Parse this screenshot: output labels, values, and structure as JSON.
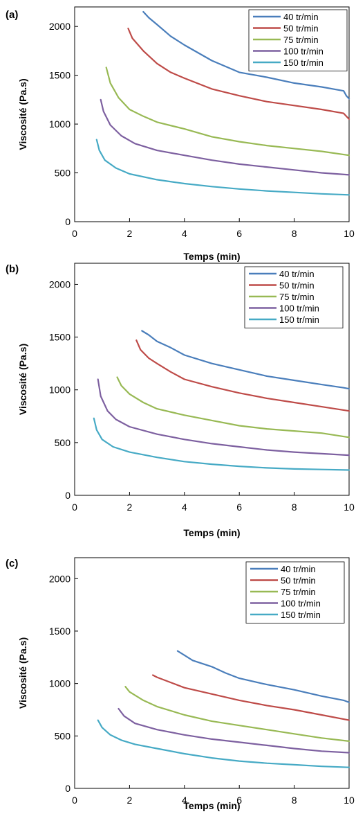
{
  "chart_data": [
    {
      "panel_label": "(a)",
      "type": "line",
      "xlabel": "Temps (min)",
      "ylabel": "Viscosité (Pa.s)",
      "xlim": [
        0,
        10
      ],
      "ylim": [
        0,
        2200
      ],
      "xticks": [
        0,
        2,
        4,
        6,
        8,
        10
      ],
      "yticks": [
        0,
        500,
        1000,
        1500,
        2000
      ],
      "grid": false,
      "legend_position": "top-right",
      "series": [
        {
          "name": "40 tr/min",
          "color": "#4a7ebb",
          "x": [
            2.5,
            2.7,
            3.0,
            3.5,
            4.0,
            5.0,
            6.0,
            7.0,
            8.0,
            9.0,
            9.8,
            9.9,
            10.0
          ],
          "y": [
            2150,
            2090,
            2020,
            1900,
            1810,
            1650,
            1530,
            1480,
            1420,
            1380,
            1340,
            1290,
            1260
          ]
        },
        {
          "name": "50 tr/min",
          "color": "#be4b48",
          "x": [
            1.95,
            2.1,
            2.5,
            3.0,
            3.5,
            4.0,
            5.0,
            6.0,
            7.0,
            8.0,
            9.0,
            9.8,
            10.0
          ],
          "y": [
            1980,
            1880,
            1750,
            1620,
            1530,
            1470,
            1360,
            1290,
            1230,
            1190,
            1150,
            1110,
            1050
          ]
        },
        {
          "name": "75 tr/min",
          "color": "#98b954",
          "x": [
            1.15,
            1.3,
            1.6,
            2.0,
            2.5,
            3.0,
            4.0,
            5.0,
            6.0,
            7.0,
            8.0,
            9.0,
            10.0
          ],
          "y": [
            1580,
            1420,
            1270,
            1150,
            1080,
            1020,
            950,
            870,
            820,
            780,
            750,
            720,
            680
          ]
        },
        {
          "name": "100 tr/min",
          "color": "#7d60a0",
          "x": [
            0.95,
            1.05,
            1.3,
            1.7,
            2.2,
            3.0,
            4.0,
            5.0,
            6.0,
            7.0,
            8.0,
            9.0,
            10.0
          ],
          "y": [
            1250,
            1130,
            990,
            880,
            800,
            730,
            680,
            630,
            590,
            560,
            530,
            500,
            480
          ]
        },
        {
          "name": "150 tr/min",
          "color": "#46aac5",
          "x": [
            0.8,
            0.9,
            1.1,
            1.5,
            2.0,
            3.0,
            4.0,
            5.0,
            6.0,
            7.0,
            8.0,
            9.0,
            10.0
          ],
          "y": [
            840,
            730,
            630,
            550,
            490,
            430,
            390,
            360,
            335,
            315,
            300,
            285,
            275
          ]
        }
      ]
    },
    {
      "panel_label": "(b)",
      "type": "line",
      "xlabel": "Temps (min)",
      "ylabel": "Viscosité (Pa.s)",
      "xlim": [
        0,
        10
      ],
      "ylim": [
        0,
        2200
      ],
      "xticks": [
        0,
        2,
        4,
        6,
        8,
        10
      ],
      "yticks": [
        0,
        500,
        1000,
        1500,
        2000
      ],
      "grid": false,
      "legend_position": "top-right",
      "series": [
        {
          "name": "40 tr/min",
          "color": "#4a7ebb",
          "x": [
            2.45,
            2.7,
            3.0,
            3.5,
            4.0,
            5.0,
            6.0,
            7.0,
            8.0,
            9.0,
            9.8,
            10.0
          ],
          "y": [
            1560,
            1520,
            1460,
            1400,
            1330,
            1250,
            1190,
            1130,
            1090,
            1050,
            1020,
            1010
          ]
        },
        {
          "name": "50 tr/min",
          "color": "#be4b48",
          "x": [
            2.25,
            2.4,
            2.7,
            3.0,
            3.5,
            4.0,
            5.0,
            6.0,
            7.0,
            8.0,
            9.0,
            10.0
          ],
          "y": [
            1470,
            1380,
            1300,
            1250,
            1170,
            1100,
            1030,
            970,
            920,
            880,
            840,
            800
          ]
        },
        {
          "name": "75 tr/min",
          "color": "#98b954",
          "x": [
            1.55,
            1.7,
            2.0,
            2.5,
            3.0,
            4.0,
            5.0,
            6.0,
            7.0,
            8.0,
            9.0,
            10.0
          ],
          "y": [
            1120,
            1040,
            960,
            880,
            820,
            760,
            710,
            660,
            630,
            610,
            590,
            550
          ]
        },
        {
          "name": "100 tr/min",
          "color": "#7d60a0",
          "x": [
            0.85,
            0.95,
            1.2,
            1.5,
            2.0,
            3.0,
            4.0,
            5.0,
            6.0,
            7.0,
            8.0,
            9.0,
            10.0
          ],
          "y": [
            1100,
            940,
            800,
            720,
            650,
            580,
            530,
            490,
            460,
            430,
            410,
            395,
            380
          ]
        },
        {
          "name": "150 tr/min",
          "color": "#46aac5",
          "x": [
            0.7,
            0.8,
            1.0,
            1.4,
            2.0,
            3.0,
            4.0,
            5.0,
            6.0,
            7.0,
            8.0,
            9.0,
            10.0
          ],
          "y": [
            730,
            620,
            530,
            460,
            410,
            360,
            320,
            295,
            275,
            260,
            250,
            245,
            240
          ]
        }
      ]
    },
    {
      "panel_label": "(c)",
      "type": "line",
      "xlabel": "Temps (min)",
      "ylabel": "Viscosité (Pa.s)",
      "xlim": [
        0,
        10
      ],
      "ylim": [
        0,
        2200
      ],
      "xticks": [
        0,
        2,
        4,
        6,
        8,
        10
      ],
      "yticks": [
        0,
        500,
        1000,
        1500,
        2000
      ],
      "grid": false,
      "legend_position": "top-right",
      "series": [
        {
          "name": "40 tr/min",
          "color": "#4a7ebb",
          "x": [
            3.75,
            4.0,
            4.3,
            5.0,
            5.5,
            6.0,
            7.0,
            8.0,
            9.0,
            9.8,
            10.0
          ],
          "y": [
            1310,
            1270,
            1220,
            1160,
            1100,
            1050,
            990,
            940,
            880,
            840,
            820
          ]
        },
        {
          "name": "50 tr/min",
          "color": "#be4b48",
          "x": [
            2.85,
            3.0,
            3.5,
            4.0,
            5.0,
            6.0,
            7.0,
            8.0,
            9.0,
            10.0
          ],
          "y": [
            1080,
            1060,
            1010,
            960,
            900,
            840,
            790,
            750,
            700,
            650
          ]
        },
        {
          "name": "75 tr/min",
          "color": "#98b954",
          "x": [
            1.85,
            2.0,
            2.5,
            3.0,
            4.0,
            5.0,
            6.0,
            7.0,
            8.0,
            9.0,
            10.0
          ],
          "y": [
            970,
            920,
            840,
            780,
            700,
            640,
            600,
            560,
            520,
            480,
            450
          ]
        },
        {
          "name": "100 tr/min",
          "color": "#7d60a0",
          "x": [
            1.6,
            1.8,
            2.2,
            3.0,
            4.0,
            5.0,
            6.0,
            7.0,
            8.0,
            9.0,
            10.0
          ],
          "y": [
            760,
            690,
            620,
            560,
            510,
            470,
            440,
            410,
            380,
            355,
            340
          ]
        },
        {
          "name": "150 tr/min",
          "color": "#46aac5",
          "x": [
            0.85,
            1.0,
            1.3,
            1.7,
            2.2,
            3.0,
            4.0,
            5.0,
            6.0,
            7.0,
            8.0,
            9.0,
            10.0
          ],
          "y": [
            650,
            580,
            510,
            460,
            420,
            380,
            330,
            290,
            260,
            240,
            225,
            210,
            200
          ]
        }
      ]
    }
  ]
}
